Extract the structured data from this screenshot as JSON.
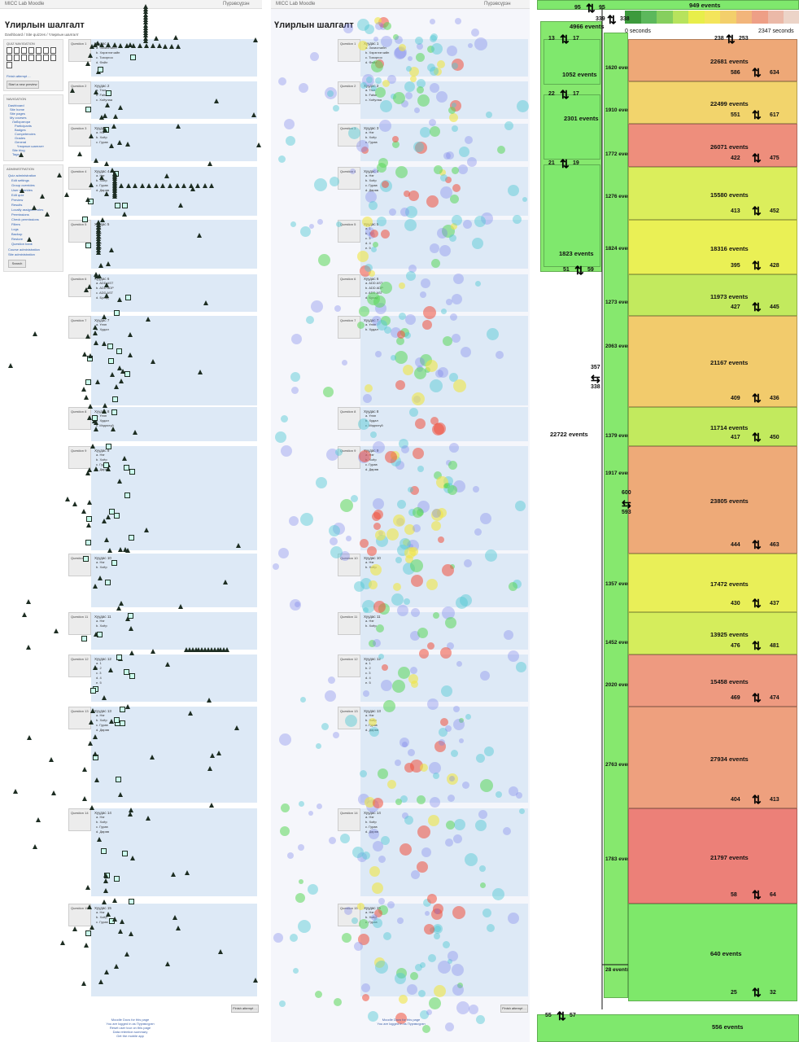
{
  "app": {
    "site_name": "MICC Lab Moodle",
    "user_chip": "Пүрэвсүрэн",
    "page_title": "Үлирлын шалгалт"
  },
  "breadcrumb": [
    "Dashboard",
    "Site quizzes",
    "Үлирлын шалгалт"
  ],
  "quiz_nav": {
    "title": "QUIZ NAVIGATION",
    "finish_link": "Finish attempt ...",
    "new_preview_button": "Start a new preview"
  },
  "navigation": {
    "title": "NAVIGATION",
    "items": [
      "Dashboard",
      "Site home",
      "Site pages",
      "My courses",
      "Лаборатори",
      "Participants",
      "Badges",
      "Competencies",
      "Grades",
      "General",
      "Үлирлын шалгалт",
      "Site blog",
      "Tags",
      "Calendar"
    ]
  },
  "administration": {
    "title": "ADMINISTRATION",
    "items": [
      "Quiz administration",
      "Edit settings",
      "Group overrides",
      "User overrides",
      "Edit quiz",
      "Preview",
      "Results",
      "Locally assigned roles",
      "Permissions",
      "Check permissions",
      "Filters",
      "Logs",
      "Backup",
      "Restore",
      "Question bank",
      "Course administration",
      "Site administration"
    ]
  },
  "search_placeholder": "Search",
  "questions": [
    {
      "label": "Question 1",
      "text": "Хуудас 1",
      "options": [
        "a. Зохиогчийн",
        "b. Хэрэглэгчийн",
        "c. Тохиргоо",
        "d. Файл"
      ]
    },
    {
      "label": "Question 2",
      "text": "Хуудас 2",
      "options": [
        "a. True",
        "b. False",
        "c. Хоёулаа"
      ]
    },
    {
      "label": "Question 3",
      "text": "Хуудас 3",
      "options": [
        "a. Нэг",
        "b. Хоёр",
        "c. Гурав"
      ]
    },
    {
      "label": "Question 4",
      "text": "Хуудас 4",
      "options": [
        "a. Нэг",
        "b. Хоёр",
        "c. Гурав",
        "d. Дөрөв"
      ]
    },
    {
      "label": "Question 5",
      "text": "Хуудас 5",
      "options": [
        "a. 1",
        "b. 2",
        "c. 3",
        "d. 4",
        "e. 5"
      ]
    },
    {
      "label": "Question 6",
      "text": "Хуудас 6",
      "options": [
        "a. ADD AST",
        "b. ADD ADP",
        "c. ADD AST",
        "d. Бусад"
      ]
    },
    {
      "label": "Question 7",
      "text": "Хуудас 7",
      "options": [
        "a. Үнэн",
        "b. Худал"
      ]
    },
    {
      "label": "Question 8",
      "text": "Хуудас 8",
      "options": [
        "a. Үнэн",
        "b. Худал",
        "c. Мэдэхгүй"
      ]
    },
    {
      "label": "Question 9",
      "text": "Хуудас 9",
      "options": [
        "a. Нэг",
        "b. Хоёр",
        "c. Гурав",
        "d. Дөрөв"
      ]
    },
    {
      "label": "Question 10",
      "text": "Хуудас 10",
      "options": [
        "a. Нэг",
        "b. Хоёр"
      ]
    },
    {
      "label": "Question 11",
      "text": "Хуудас 11",
      "options": [
        "a. Нэг",
        "b. Хоёр"
      ]
    },
    {
      "label": "Question 12",
      "text": "Хуудас 12",
      "options": [
        "a. 1",
        "b. 2",
        "c. 3",
        "d. 4",
        "e. 5"
      ]
    },
    {
      "label": "Question 13",
      "text": "Хуудас 13",
      "options": [
        "a. Нэг",
        "b. Хоёр",
        "c. Гурав",
        "d. Дөрөв"
      ]
    },
    {
      "label": "Question 14",
      "text": "Хуудас 14",
      "options": [
        "a. Нэг",
        "b. Хоёр",
        "c. Гурав",
        "d. Дөрөв"
      ]
    },
    {
      "label": "Question 15",
      "text": "Хуудас 15",
      "options": [
        "a. Нэг",
        "b. Хоёр",
        "c. Гурав"
      ]
    }
  ],
  "finish_attempt_button": "Finish attempt ...",
  "footer": [
    "Moodle Docs for this page",
    "You are logged in as Пүрэвсүрэн",
    "Reset user tour on this page",
    "Data retention summary",
    "Get the mobile app"
  ],
  "timeline": {
    "start_label": "0 seconds",
    "end_label": "2347 seconds"
  },
  "scale_colors": [
    "#3c9a3c",
    "#5cb85c",
    "#86cf5e",
    "#b7e35d",
    "#e8ee4a",
    "#f4e55b",
    "#f3cf6b",
    "#f2b57b",
    "#ee9f86",
    "#ebb9a8",
    "#ecd4c8"
  ],
  "overall_events": "22722 events",
  "header_events": "949 events",
  "footer_events": "556 events",
  "treemap": {
    "left_sections": [
      {
        "events": "1052 events"
      },
      {
        "events": "2301 events"
      },
      {
        "events": "1823 events"
      }
    ],
    "mid_sections": [
      {
        "events": "1620 events"
      },
      {
        "events": "1910 events"
      },
      {
        "events": "1772 events"
      },
      {
        "events": "1276 events"
      },
      {
        "events": "1824 events"
      },
      {
        "events": "1273 events"
      },
      {
        "events": "2063 events"
      },
      {
        "events": "1379 events"
      },
      {
        "events": "1917 events"
      },
      {
        "events": "1357 events"
      },
      {
        "events": "1452 events"
      },
      {
        "events": "2020 events"
      },
      {
        "events": "2763 events"
      },
      {
        "events": "1783 events"
      },
      {
        "events": "28 events"
      },
      {
        "events": "4966 events"
      }
    ],
    "questions": [
      {
        "events": "22681 events",
        "color": "#eea877",
        "up": "586",
        "down": "634"
      },
      {
        "events": "22499 events",
        "color": "#f2d46c",
        "up": "551",
        "down": "617"
      },
      {
        "events": "26071 events",
        "color": "#ee8e7c",
        "up": "422",
        "down": "475"
      },
      {
        "events": "15580 events",
        "color": "#dbee5c",
        "up": "413",
        "down": "452"
      },
      {
        "events": "18316 events",
        "color": "#eaf055",
        "up": "395",
        "down": "428"
      },
      {
        "events": "11973 events",
        "color": "#c2ea5e",
        "up": "427",
        "down": "445"
      },
      {
        "events": "21167 events",
        "color": "#f2cb6c",
        "up": "409",
        "down": "436"
      },
      {
        "events": "11714 events",
        "color": "#c2ea5e",
        "up": "417",
        "down": "450"
      },
      {
        "events": "23805 events",
        "color": "#eeaa78",
        "up": "444",
        "down": "463"
      },
      {
        "events": "17472 events",
        "color": "#e9ef58",
        "up": "430",
        "down": "437"
      },
      {
        "events": "13925 events",
        "color": "#d5ed5c",
        "up": "476",
        "down": "481"
      },
      {
        "events": "15458 events",
        "color": "#ee9a80",
        "up": "469",
        "down": "474"
      },
      {
        "events": "27934 events",
        "color": "#eea07e",
        "up": "404",
        "down": "413"
      },
      {
        "events": "21797 events",
        "color": "#ec8078",
        "up": "58",
        "down": "64"
      },
      {
        "events": "640 events",
        "color": "#7ee86a",
        "up": "25",
        "down": "32"
      }
    ],
    "transitions": {
      "top_a": "95",
      "top_b": "95",
      "head_a": "339",
      "head_b": "338",
      "q0_up": "238",
      "q0_down": "253",
      "nav_a": "13",
      "nav_b": "17",
      "nav2_a": "22",
      "nav2_b": "17",
      "nav3_a": "21",
      "nav3_b": "19",
      "nav4_a": "51",
      "nav4_b": "59",
      "side_in": "357",
      "side_out": "338",
      "mid_in": "600",
      "mid_out": "593",
      "foot_a": "55",
      "foot_b": "57"
    }
  }
}
